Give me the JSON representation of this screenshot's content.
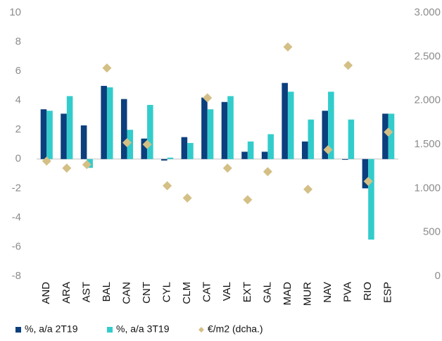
{
  "chart_data": {
    "type": "bar",
    "categories": [
      "AND",
      "ARA",
      "AST",
      "BAL",
      "CAN",
      "CNT",
      "CYL",
      "CLM",
      "CAT",
      "VAL",
      "EXT",
      "GAL",
      "MAD",
      "MUR",
      "NAV",
      "PVA",
      "RIO",
      "ESP"
    ],
    "series": [
      {
        "name": "%, a/a 2T19",
        "color": "#0b3f7d",
        "values": [
          3.4,
          3.1,
          2.3,
          5.0,
          4.1,
          1.4,
          -0.1,
          1.5,
          4.2,
          3.9,
          0.5,
          0.5,
          5.2,
          1.2,
          3.3,
          -0.05,
          -2.0,
          3.1
        ]
      },
      {
        "name": "%, a/a 3T19",
        "color": "#33cccc",
        "values": [
          3.3,
          4.3,
          -0.6,
          4.9,
          2.0,
          3.7,
          0.1,
          1.1,
          3.4,
          4.3,
          1.2,
          1.7,
          4.6,
          2.7,
          4.6,
          2.7,
          -5.5,
          3.1
        ]
      },
      {
        "name": "€/m2 (dcha.)",
        "color": "#d4bf85",
        "type": "scatter",
        "axis": "y2",
        "values": [
          1310,
          1230,
          1270,
          2370,
          1520,
          1500,
          1030,
          890,
          2030,
          1230,
          870,
          1190,
          2610,
          990,
          1440,
          2400,
          1080,
          1640
        ]
      }
    ],
    "ylim": [
      -8,
      10
    ],
    "yticks": [
      -8,
      -6,
      -4,
      -2,
      0,
      2,
      4,
      6,
      8,
      10
    ],
    "y2lim": [
      0,
      3000
    ],
    "y2ticks": [
      0,
      500,
      {
        "value": 1000,
        "label": "1.000"
      },
      {
        "value": 1500,
        "label": "1.500"
      },
      {
        "value": 2000,
        "label": "2.000"
      },
      {
        "value": 2500,
        "label": "2.500"
      },
      {
        "value": 3000,
        "label": "3.000"
      }
    ],
    "legend": "bottom",
    "grid": false
  }
}
